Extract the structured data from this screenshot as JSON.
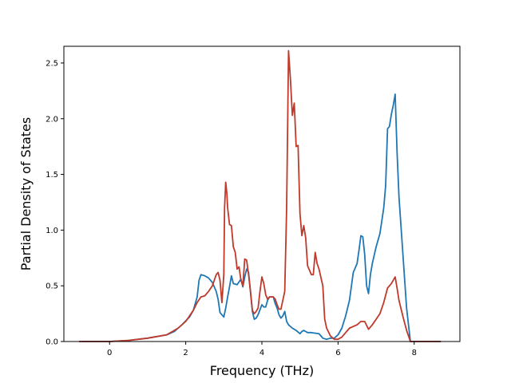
{
  "chart_data": {
    "type": "line",
    "title": "",
    "xlabel": "Frequency (THz)",
    "ylabel": "Partial Density of States",
    "xlim": [
      -1.2,
      9.2
    ],
    "ylim": [
      0,
      2.65
    ],
    "grid": false,
    "legend": "none",
    "xticks": [
      0,
      2,
      4,
      6,
      8
    ],
    "xtick_labels": [
      "0",
      "2",
      "4",
      "6",
      "8"
    ],
    "yticks": [
      0.0,
      0.5,
      1.0,
      1.5,
      2.0,
      2.5
    ],
    "ytick_labels": [
      "0.0",
      "0.5",
      "1.0",
      "1.5",
      "2.0",
      "2.5"
    ],
    "series": [
      {
        "color": "#1f77b4",
        "points": [
          [
            -0.8,
            0.0
          ],
          [
            0.0,
            0.0
          ],
          [
            0.5,
            0.01
          ],
          [
            1.0,
            0.03
          ],
          [
            1.5,
            0.06
          ],
          [
            1.7,
            0.09
          ],
          [
            1.9,
            0.15
          ],
          [
            2.1,
            0.22
          ],
          [
            2.2,
            0.28
          ],
          [
            2.3,
            0.4
          ],
          [
            2.35,
            0.55
          ],
          [
            2.4,
            0.6
          ],
          [
            2.5,
            0.59
          ],
          [
            2.6,
            0.57
          ],
          [
            2.7,
            0.53
          ],
          [
            2.8,
            0.45
          ],
          [
            2.85,
            0.38
          ],
          [
            2.9,
            0.26
          ],
          [
            3.0,
            0.22
          ],
          [
            3.05,
            0.3
          ],
          [
            3.1,
            0.4
          ],
          [
            3.15,
            0.49
          ],
          [
            3.2,
            0.59
          ],
          [
            3.25,
            0.52
          ],
          [
            3.35,
            0.51
          ],
          [
            3.45,
            0.56
          ],
          [
            3.5,
            0.49
          ],
          [
            3.55,
            0.58
          ],
          [
            3.6,
            0.65
          ],
          [
            3.65,
            0.62
          ],
          [
            3.7,
            0.45
          ],
          [
            3.75,
            0.27
          ],
          [
            3.8,
            0.2
          ],
          [
            3.85,
            0.21
          ],
          [
            3.9,
            0.24
          ],
          [
            4.0,
            0.33
          ],
          [
            4.05,
            0.31
          ],
          [
            4.1,
            0.31
          ],
          [
            4.15,
            0.37
          ],
          [
            4.2,
            0.4
          ],
          [
            4.3,
            0.4
          ],
          [
            4.35,
            0.34
          ],
          [
            4.4,
            0.3
          ],
          [
            4.45,
            0.24
          ],
          [
            4.5,
            0.21
          ],
          [
            4.55,
            0.23
          ],
          [
            4.6,
            0.27
          ],
          [
            4.65,
            0.18
          ],
          [
            4.7,
            0.15
          ],
          [
            4.8,
            0.12
          ],
          [
            4.9,
            0.1
          ],
          [
            5.0,
            0.07
          ],
          [
            5.05,
            0.09
          ],
          [
            5.1,
            0.1
          ],
          [
            5.2,
            0.08
          ],
          [
            5.3,
            0.08
          ],
          [
            5.5,
            0.07
          ],
          [
            5.6,
            0.03
          ],
          [
            5.7,
            0.02
          ],
          [
            5.8,
            0.03
          ],
          [
            5.9,
            0.03
          ],
          [
            6.0,
            0.06
          ],
          [
            6.1,
            0.12
          ],
          [
            6.2,
            0.23
          ],
          [
            6.3,
            0.37
          ],
          [
            6.4,
            0.62
          ],
          [
            6.5,
            0.7
          ],
          [
            6.55,
            0.82
          ],
          [
            6.6,
            0.95
          ],
          [
            6.65,
            0.94
          ],
          [
            6.7,
            0.78
          ],
          [
            6.75,
            0.5
          ],
          [
            6.8,
            0.43
          ],
          [
            6.85,
            0.6
          ],
          [
            6.9,
            0.7
          ],
          [
            7.0,
            0.85
          ],
          [
            7.1,
            0.97
          ],
          [
            7.2,
            1.2
          ],
          [
            7.25,
            1.4
          ],
          [
            7.3,
            1.91
          ],
          [
            7.35,
            1.93
          ],
          [
            7.4,
            2.04
          ],
          [
            7.45,
            2.12
          ],
          [
            7.5,
            2.22
          ],
          [
            7.55,
            1.7
          ],
          [
            7.6,
            1.3
          ],
          [
            7.7,
            0.8
          ],
          [
            7.8,
            0.3
          ],
          [
            7.9,
            0.0
          ],
          [
            8.7,
            0.0
          ]
        ]
      },
      {
        "color": "#c0392b",
        "points": [
          [
            -0.8,
            0.0
          ],
          [
            0.0,
            0.0
          ],
          [
            0.5,
            0.01
          ],
          [
            1.0,
            0.03
          ],
          [
            1.5,
            0.06
          ],
          [
            1.8,
            0.12
          ],
          [
            2.0,
            0.18
          ],
          [
            2.2,
            0.28
          ],
          [
            2.3,
            0.35
          ],
          [
            2.4,
            0.4
          ],
          [
            2.5,
            0.41
          ],
          [
            2.6,
            0.45
          ],
          [
            2.7,
            0.5
          ],
          [
            2.8,
            0.6
          ],
          [
            2.85,
            0.62
          ],
          [
            2.9,
            0.55
          ],
          [
            2.95,
            0.35
          ],
          [
            3.0,
            0.6
          ],
          [
            3.02,
            1.2
          ],
          [
            3.05,
            1.43
          ],
          [
            3.08,
            1.33
          ],
          [
            3.1,
            1.2
          ],
          [
            3.15,
            1.05
          ],
          [
            3.2,
            1.04
          ],
          [
            3.25,
            0.85
          ],
          [
            3.3,
            0.8
          ],
          [
            3.35,
            0.65
          ],
          [
            3.4,
            0.67
          ],
          [
            3.45,
            0.55
          ],
          [
            3.5,
            0.5
          ],
          [
            3.55,
            0.74
          ],
          [
            3.6,
            0.73
          ],
          [
            3.65,
            0.6
          ],
          [
            3.7,
            0.45
          ],
          [
            3.75,
            0.28
          ],
          [
            3.8,
            0.25
          ],
          [
            3.85,
            0.27
          ],
          [
            3.9,
            0.3
          ],
          [
            3.95,
            0.45
          ],
          [
            4.0,
            0.58
          ],
          [
            4.05,
            0.52
          ],
          [
            4.1,
            0.42
          ],
          [
            4.15,
            0.38
          ],
          [
            4.2,
            0.4
          ],
          [
            4.3,
            0.4
          ],
          [
            4.35,
            0.38
          ],
          [
            4.4,
            0.33
          ],
          [
            4.45,
            0.29
          ],
          [
            4.5,
            0.29
          ],
          [
            4.6,
            0.45
          ],
          [
            4.65,
            1.2
          ],
          [
            4.7,
            2.61
          ],
          [
            4.75,
            2.35
          ],
          [
            4.8,
            2.03
          ],
          [
            4.85,
            2.14
          ],
          [
            4.9,
            1.75
          ],
          [
            4.95,
            1.76
          ],
          [
            5.0,
            1.15
          ],
          [
            5.05,
            0.95
          ],
          [
            5.1,
            1.04
          ],
          [
            5.15,
            0.93
          ],
          [
            5.2,
            0.68
          ],
          [
            5.3,
            0.6
          ],
          [
            5.35,
            0.6
          ],
          [
            5.4,
            0.8
          ],
          [
            5.45,
            0.7
          ],
          [
            5.5,
            0.65
          ],
          [
            5.6,
            0.5
          ],
          [
            5.65,
            0.2
          ],
          [
            5.7,
            0.12
          ],
          [
            5.8,
            0.05
          ],
          [
            5.9,
            0.02
          ],
          [
            6.0,
            0.02
          ],
          [
            6.1,
            0.04
          ],
          [
            6.3,
            0.12
          ],
          [
            6.5,
            0.15
          ],
          [
            6.6,
            0.18
          ],
          [
            6.7,
            0.18
          ],
          [
            6.8,
            0.11
          ],
          [
            6.9,
            0.15
          ],
          [
            7.0,
            0.2
          ],
          [
            7.1,
            0.25
          ],
          [
            7.2,
            0.35
          ],
          [
            7.3,
            0.48
          ],
          [
            7.4,
            0.52
          ],
          [
            7.45,
            0.55
          ],
          [
            7.5,
            0.58
          ],
          [
            7.55,
            0.48
          ],
          [
            7.6,
            0.37
          ],
          [
            7.7,
            0.23
          ],
          [
            7.8,
            0.1
          ],
          [
            7.9,
            0.0
          ],
          [
            8.7,
            0.0
          ]
        ]
      }
    ]
  }
}
